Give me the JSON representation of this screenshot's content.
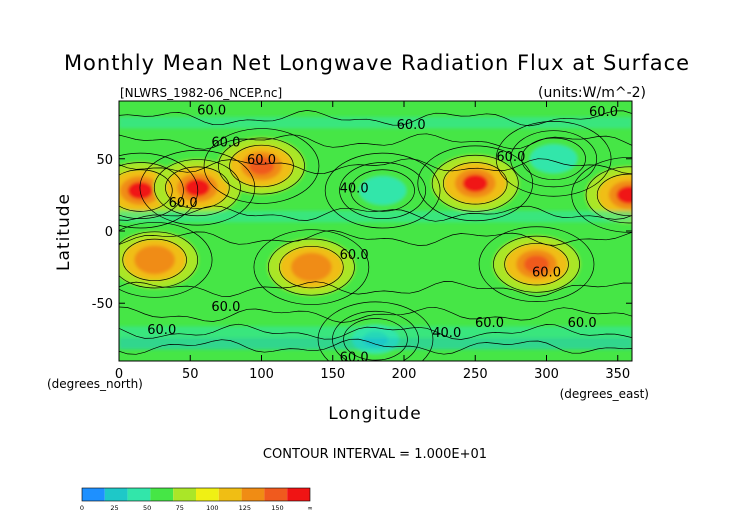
{
  "chart_data": {
    "type": "heatmap",
    "title": "Monthly Mean Net Longwave Radiation Flux at Surface",
    "file_label": "[NLWRS_1982-06_NCEP.nc]",
    "units_label": "(units:W/m^-2)",
    "xlabel": "Longitude",
    "ylabel": "Latitude",
    "x_unit_label": "(degrees_east)",
    "y_unit_label": "(degrees_north)",
    "xlim": [
      0,
      360
    ],
    "ylim": [
      -90,
      90
    ],
    "x_ticks": [
      0,
      50,
      100,
      150,
      200,
      250,
      300,
      350
    ],
    "y_ticks": [
      50,
      0,
      -50
    ],
    "contour_interval_text": "CONTOUR INTERVAL = 1.000E+01",
    "contour_labels": [
      {
        "text": "60.0",
        "lon": 65,
        "lat": 84
      },
      {
        "text": "60.0",
        "lon": 205,
        "lat": 74
      },
      {
        "text": "60.0",
        "lon": 340,
        "lat": 83
      },
      {
        "text": "60.0",
        "lon": 75,
        "lat": 62
      },
      {
        "text": "60.0",
        "lon": 100,
        "lat": 50
      },
      {
        "text": "60.0",
        "lon": 275,
        "lat": 52
      },
      {
        "text": "40.0",
        "lon": 165,
        "lat": 30
      },
      {
        "text": "60.0",
        "lon": 45,
        "lat": 20
      },
      {
        "text": "60.0",
        "lon": 165,
        "lat": -16
      },
      {
        "text": "60.0",
        "lon": 300,
        "lat": -28
      },
      {
        "text": "60.0",
        "lon": 75,
        "lat": -52
      },
      {
        "text": "60.0",
        "lon": 30,
        "lat": -68
      },
      {
        "text": "60.0",
        "lon": 260,
        "lat": -63
      },
      {
        "text": "40.0",
        "lon": 230,
        "lat": -70
      },
      {
        "text": "60.0",
        "lon": 325,
        "lat": -63
      },
      {
        "text": "60.0",
        "lon": 165,
        "lat": -87
      }
    ],
    "colorbar": {
      "levels": [
        "0",
        "25",
        "50",
        "75",
        "100",
        "125",
        "150",
        "∞"
      ],
      "colors": [
        "#1e90ff",
        "#1ec8c8",
        "#32e6aa",
        "#46e646",
        "#aae628",
        "#f0f014",
        "#f0be14",
        "#f08c14",
        "#f05a1e",
        "#f01414"
      ]
    },
    "features": [
      {
        "lon": 15,
        "lat": 28,
        "value": 150
      },
      {
        "lon": 55,
        "lat": 30,
        "value": 145
      },
      {
        "lon": 250,
        "lat": 33,
        "value": 140
      },
      {
        "lon": 358,
        "lat": 25,
        "value": 140
      },
      {
        "lon": 100,
        "lat": 45,
        "value": 130
      },
      {
        "lon": 25,
        "lat": -20,
        "value": 125
      },
      {
        "lon": 135,
        "lat": -25,
        "value": 115
      },
      {
        "lon": 293,
        "lat": -23,
        "value": 130
      },
      {
        "lon": 185,
        "lat": 28,
        "value": 35
      },
      {
        "lon": 305,
        "lat": 50,
        "value": 35
      },
      {
        "lon": 180,
        "lat": -75,
        "value": 20
      }
    ]
  }
}
